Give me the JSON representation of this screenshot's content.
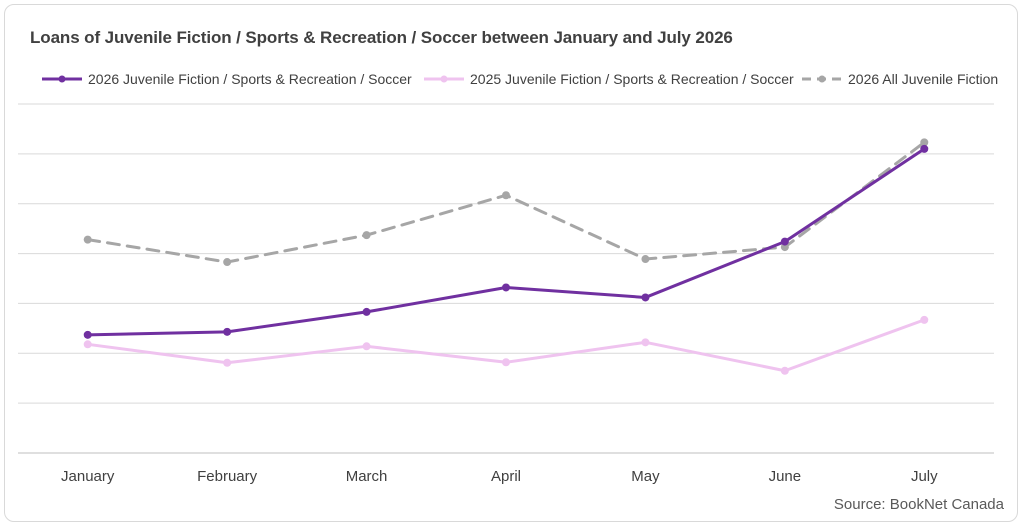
{
  "chart_data": {
    "type": "line",
    "title": "Loans of Juvenile Fiction / Sports & Recreation / Soccer between January and July 2026",
    "categories": [
      "January",
      "February",
      "March",
      "April",
      "May",
      "June",
      "July"
    ],
    "series": [
      {
        "name": "2026 Juvenile Fiction / Sports & Recreation / Soccer",
        "color": "#7030a0",
        "dash": "solid",
        "values": [
          2.37,
          2.43,
          2.83,
          3.32,
          3.12,
          4.24,
          6.1
        ]
      },
      {
        "name": "2025 Juvenile Fiction / Sports & Recreation / Soccer",
        "color": "#efc3ef",
        "dash": "solid",
        "values": [
          2.18,
          1.81,
          2.14,
          1.82,
          2.22,
          1.65,
          2.67
        ]
      },
      {
        "name": "2026 All Juvenile Fiction",
        "color": "#a6a6a6",
        "dash": "dashed",
        "values": [
          4.28,
          3.83,
          4.37,
          5.17,
          3.89,
          4.13,
          6.23
        ]
      }
    ],
    "ylim": [
      0,
      7
    ],
    "grid": true,
    "legend_position": "top",
    "ylabel": "",
    "xlabel": ""
  },
  "source": "Source: BookNet Canada"
}
